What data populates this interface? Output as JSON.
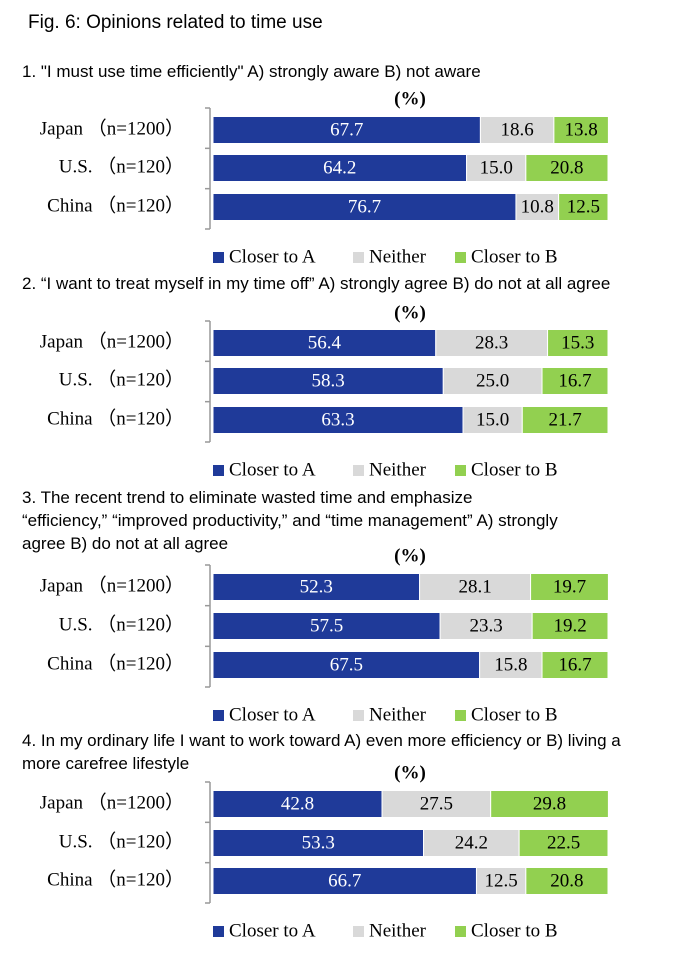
{
  "title": "Fig. 6: Opinions related to time use",
  "chart_data": [
    {
      "type": "bar",
      "orientation": "horizontal",
      "stacked": true,
      "title": "1. \"I must use time efficiently\" A) strongly aware B) not aware",
      "unit_label": "(%)",
      "categories": [
        "Japan （n=1200）",
        "U.S. （n=120）",
        "China （n=120）"
      ],
      "xlim": [
        0,
        100
      ],
      "series": [
        {
          "name": "Closer to A",
          "color": "#1f3a99",
          "values": [
            67.7,
            64.2,
            76.7
          ]
        },
        {
          "name": "Neither",
          "color": "#d9d9d9",
          "values": [
            18.6,
            15.0,
            10.8
          ],
          "value_labels": [
            "18.6",
            "15.0",
            "10.8"
          ]
        },
        {
          "name": "Closer to B",
          "color": "#92d050",
          "values": [
            13.8,
            20.8,
            12.5
          ]
        }
      ]
    },
    {
      "type": "bar",
      "orientation": "horizontal",
      "stacked": true,
      "title": "2. “I want to treat myself in my time off” A) strongly agree B) do not at all agree",
      "unit_label": "(%)",
      "categories": [
        "Japan （n=1200）",
        "U.S. （n=120）",
        "China （n=120）"
      ],
      "xlim": [
        0,
        100
      ],
      "series": [
        {
          "name": "Closer to A",
          "color": "#1f3a99",
          "values": [
            56.4,
            58.3,
            63.3
          ]
        },
        {
          "name": "Neither",
          "color": "#d9d9d9",
          "values": [
            28.3,
            25.0,
            15.0
          ],
          "value_labels": [
            "28.3",
            "25.0",
            "15.0"
          ]
        },
        {
          "name": "Closer to B",
          "color": "#92d050",
          "values": [
            15.3,
            16.7,
            21.7
          ]
        }
      ]
    },
    {
      "type": "bar",
      "orientation": "horizontal",
      "stacked": true,
      "title": "3. The recent trend to eliminate wasted time and emphasize “efficiency,” “improved productivity,” and “time management” A) strongly agree B) do not at all agree",
      "unit_label": "(%)",
      "categories": [
        "Japan （n=1200）",
        "U.S. （n=120）",
        "China （n=120）"
      ],
      "xlim": [
        0,
        100
      ],
      "series": [
        {
          "name": "Closer to A",
          "color": "#1f3a99",
          "values": [
            52.3,
            57.5,
            67.5
          ]
        },
        {
          "name": "Neither",
          "color": "#d9d9d9",
          "values": [
            28.1,
            23.3,
            15.8
          ]
        },
        {
          "name": "Closer to B",
          "color": "#92d050",
          "values": [
            19.7,
            19.2,
            16.7
          ]
        }
      ]
    },
    {
      "type": "bar",
      "orientation": "horizontal",
      "stacked": true,
      "title": "4. In my ordinary life I want to work toward A) even more efficiency or B) living a more carefree lifestyle",
      "unit_label": "(%)",
      "categories": [
        "Japan （n=1200）",
        "U.S. （n=120）",
        "China （n=120）"
      ],
      "xlim": [
        0,
        100
      ],
      "series": [
        {
          "name": "Closer to A",
          "color": "#1f3a99",
          "values": [
            42.8,
            53.3,
            66.7
          ]
        },
        {
          "name": "Neither",
          "color": "#d9d9d9",
          "values": [
            27.5,
            24.2,
            12.5
          ]
        },
        {
          "name": "Closer to B",
          "color": "#92d050",
          "values": [
            29.8,
            22.5,
            20.8
          ]
        }
      ]
    }
  ]
}
